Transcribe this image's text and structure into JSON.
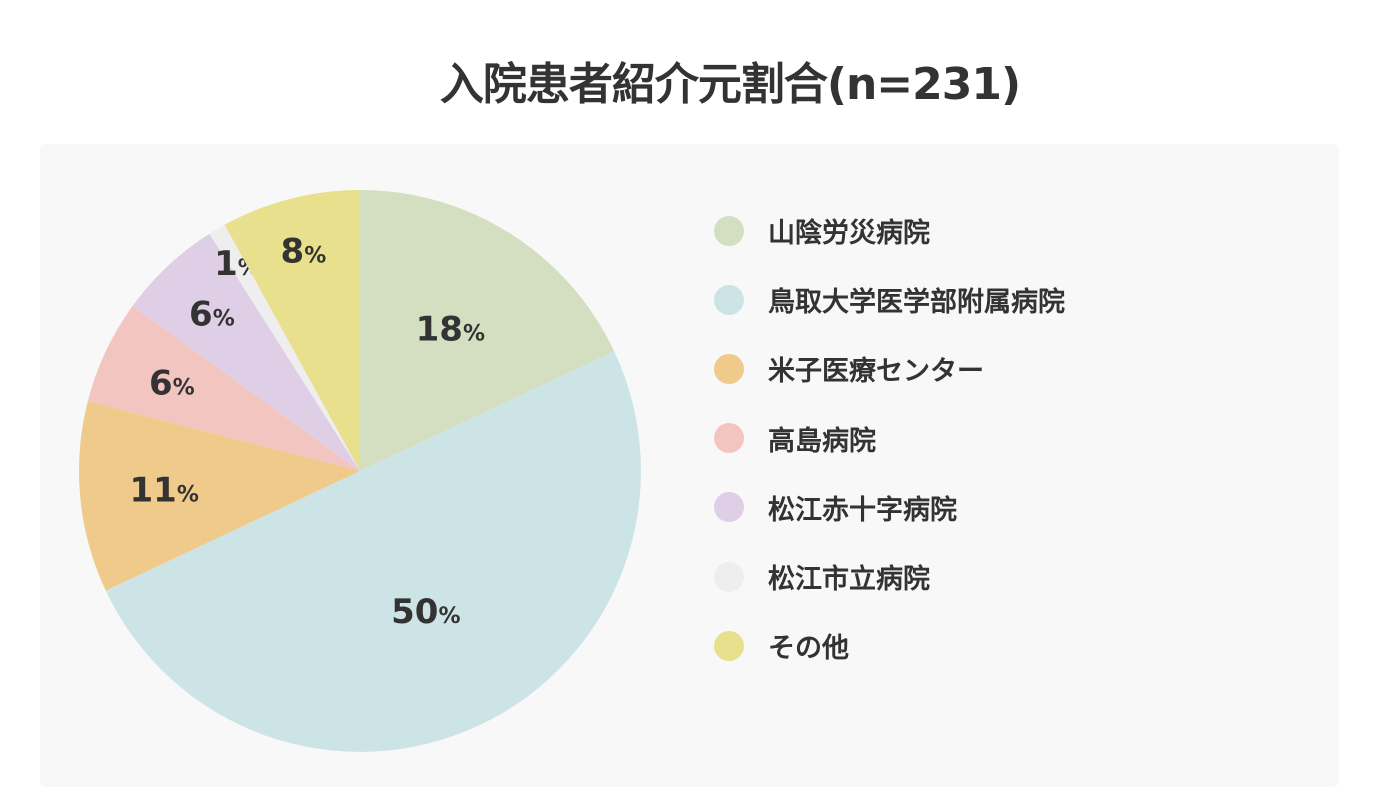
{
  "chart_data": {
    "type": "pie",
    "title": "入院患者紹介元割合(n=231)",
    "start_angle_deg": 0,
    "direction": "clockwise",
    "legend_position": "right",
    "slices": [
      {
        "label": "山陰労災病院",
        "value": 18,
        "display": "18",
        "color": "#d3dfc0"
      },
      {
        "label": "鳥取大学医学部附属病院",
        "value": 50,
        "display": "50",
        "color": "#cde4e7"
      },
      {
        "label": "米子医療センター",
        "value": 11,
        "display": "11",
        "color": "#efca8a"
      },
      {
        "label": "高島病院",
        "value": 6,
        "display": "6",
        "color": "#f3c5c1"
      },
      {
        "label": "松江赤十字病院",
        "value": 6,
        "display": "6",
        "color": "#decfe6"
      },
      {
        "label": "松江市立病院",
        "value": 1,
        "display": "1",
        "color": "#eeeeee"
      },
      {
        "label": "その他",
        "value": 8,
        "display": "8",
        "color": "#e8e08c"
      }
    ],
    "value_suffix": "%"
  }
}
